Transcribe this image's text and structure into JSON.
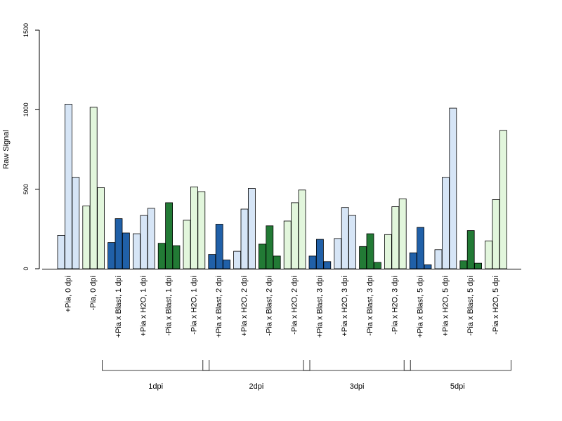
{
  "chart_data": {
    "type": "bar",
    "ylabel": "Raw Signal",
    "ylim": [
      0,
      1500
    ],
    "yticks": [
      "0",
      "500",
      "1000",
      "1500"
    ],
    "categories": [
      "+Pia, 0 dpi",
      "-Pia, 0 dpi",
      "+Pia x Blast, 1 dpi",
      "+Pia x H2O, 1 dpi",
      "-Pia x Blast, 1 dpi",
      "-Pia x H2O, 1 dpi",
      "+Pia x Blast, 2 dpi",
      "+Pia x H2O, 2 dpi",
      "-Pia x Blast, 2 dpi",
      "-Pia x H2O, 2 dpi",
      "+Pia x Blast, 3 dpi",
      "+Pia x H2O, 3 dpi",
      "-Pia x Blast, 3 dpi",
      "-Pia x H2O, 3 dpi",
      "+Pia x Blast, 5 dpi",
      "+Pia x H2O, 5 dpi",
      "-Pia x Blast, 5 dpi",
      "-Pia x H2O, 5 dpi"
    ],
    "bar_colors": [
      "#d6e5f6",
      "#e2f6dc",
      "#2060a8",
      "#d6e5f6",
      "#227a35",
      "#e2f6dc",
      "#2060a8",
      "#d6e5f6",
      "#227a35",
      "#e2f6dc",
      "#2060a8",
      "#d6e5f6",
      "#227a35",
      "#e2f6dc",
      "#2060a8",
      "#d6e5f6",
      "#227a35",
      "#e2f6dc"
    ],
    "values": [
      [
        210,
        1035,
        575
      ],
      [
        395,
        1015,
        510
      ],
      [
        165,
        315,
        225
      ],
      [
        220,
        335,
        380
      ],
      [
        160,
        415,
        145
      ],
      [
        305,
        515,
        485
      ],
      [
        90,
        280,
        55
      ],
      [
        110,
        375,
        505
      ],
      [
        155,
        270,
        80
      ],
      [
        300,
        415,
        495
      ],
      [
        80,
        185,
        45
      ],
      [
        190,
        385,
        335
      ],
      [
        140,
        220,
        40
      ],
      [
        215,
        390,
        440
      ],
      [
        100,
        260,
        25
      ],
      [
        120,
        575,
        1010
      ],
      [
        50,
        240,
        35
      ],
      [
        175,
        435,
        870
      ]
    ],
    "groups": [
      {
        "label": "1dpi",
        "from": 2,
        "to": 5
      },
      {
        "label": "2dpi",
        "from": 6,
        "to": 9
      },
      {
        "label": "3dpi",
        "from": 10,
        "to": 13
      },
      {
        "label": "5dpi",
        "from": 14,
        "to": 17
      }
    ]
  }
}
